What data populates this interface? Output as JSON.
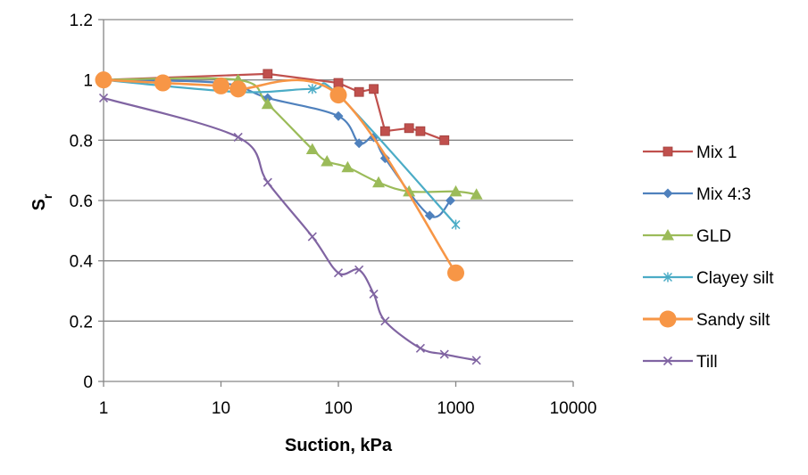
{
  "chart_data": {
    "type": "scatter",
    "title": "",
    "xlabel": "Suction, kPa",
    "ylabel": "S",
    "ylabel_sub": "r",
    "xscale": "log",
    "xlim": [
      1,
      10000
    ],
    "ylim": [
      0,
      1.2
    ],
    "x_ticks": [
      1,
      10,
      100,
      1000,
      10000
    ],
    "x_tick_labels": [
      "1",
      "10",
      "100",
      "1000",
      "10000"
    ],
    "y_ticks": [
      0,
      0.2,
      0.4,
      0.6,
      0.8,
      1,
      1.2
    ],
    "y_tick_labels": [
      "0",
      "0.2",
      "0.4",
      "0.6",
      "0.8",
      "1",
      "1.2"
    ],
    "grid": "horizontal",
    "legend_position": "right",
    "series": [
      {
        "name": "Mix 1",
        "color": "#C0504D",
        "marker": "square",
        "curve": "straight",
        "points": [
          [
            1,
            1.0
          ],
          [
            25,
            1.02
          ],
          [
            100,
            0.99
          ],
          [
            150,
            0.96
          ],
          [
            200,
            0.97
          ],
          [
            250,
            0.83
          ],
          [
            400,
            0.84
          ],
          [
            500,
            0.83
          ],
          [
            800,
            0.8
          ]
        ]
      },
      {
        "name": "Mix 4:3",
        "color": "#4F81BD",
        "marker": "diamond",
        "curve": "smooth",
        "points": [
          [
            1,
            1.0
          ],
          [
            10,
            0.99
          ],
          [
            25,
            0.94
          ],
          [
            100,
            0.88
          ],
          [
            150,
            0.79
          ],
          [
            200,
            0.81
          ],
          [
            250,
            0.74
          ],
          [
            600,
            0.55
          ],
          [
            900,
            0.6
          ]
        ]
      },
      {
        "name": "GLD",
        "color": "#9BBB59",
        "marker": "triangle",
        "curve": "smooth",
        "points": [
          [
            1,
            1.0
          ],
          [
            14,
            1.0
          ],
          [
            25,
            0.92
          ],
          [
            60,
            0.77
          ],
          [
            80,
            0.73
          ],
          [
            120,
            0.71
          ],
          [
            220,
            0.66
          ],
          [
            400,
            0.63
          ],
          [
            1000,
            0.63
          ],
          [
            1500,
            0.62
          ]
        ]
      },
      {
        "name": "Clayey silt",
        "color": "#4BACC6",
        "marker": "star",
        "curve": "smooth",
        "points": [
          [
            1,
            1.0
          ],
          [
            14,
            0.96
          ],
          [
            60,
            0.97
          ],
          [
            100,
            0.95
          ],
          [
            1000,
            0.52
          ]
        ]
      },
      {
        "name": "Sandy silt",
        "color": "#F79646",
        "marker": "circle",
        "curve": "smooth",
        "points": [
          [
            1,
            1.0
          ],
          [
            3.2,
            0.99
          ],
          [
            10,
            0.98
          ],
          [
            14,
            0.97
          ],
          [
            100,
            0.95
          ],
          [
            1000,
            0.36
          ]
        ]
      },
      {
        "name": "Till",
        "color": "#8064A2",
        "marker": "x",
        "curve": "smooth",
        "points": [
          [
            1,
            0.94
          ],
          [
            14,
            0.81
          ],
          [
            25,
            0.66
          ],
          [
            60,
            0.48
          ],
          [
            100,
            0.36
          ],
          [
            150,
            0.37
          ],
          [
            200,
            0.29
          ],
          [
            250,
            0.2
          ],
          [
            500,
            0.11
          ],
          [
            800,
            0.09
          ],
          [
            1500,
            0.07
          ]
        ]
      }
    ]
  }
}
